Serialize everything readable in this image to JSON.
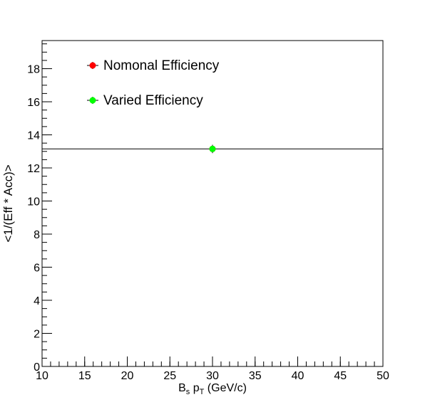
{
  "chart_data": {
    "type": "scatter",
    "xlabel": {
      "base": "B",
      "sub1": "s",
      "mid": " p",
      "sub2": "T",
      "tail": " (GeV/c)"
    },
    "ylabel": "<1/(Eff * Acc)>",
    "xlim": [
      10,
      50
    ],
    "ylim": [
      0,
      19.7
    ],
    "x_ticks": [
      10,
      15,
      20,
      25,
      30,
      35,
      40,
      45,
      50
    ],
    "y_ticks": [
      0,
      2,
      4,
      6,
      8,
      10,
      12,
      14,
      16,
      18
    ],
    "x_minor_step": 1,
    "y_minor_step": 0.5,
    "grid": false,
    "legend_position": "top-left",
    "hline": {
      "y": 13.15,
      "color": "#000000"
    },
    "series": [
      {
        "name": "Nomonal Efficiency",
        "color": "#ff0000",
        "points": [
          {
            "x": 30,
            "y": 13.15,
            "yerr": 0.25
          }
        ]
      },
      {
        "name": "Varied Efficiency",
        "color": "#00ff00",
        "points": [
          {
            "x": 30,
            "y": 13.15,
            "yerr": 0.25
          }
        ]
      }
    ]
  }
}
